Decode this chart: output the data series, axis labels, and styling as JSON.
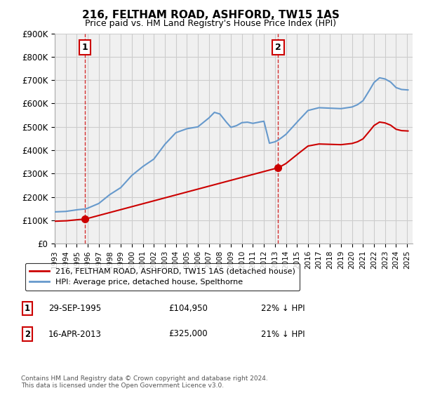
{
  "title": "216, FELTHAM ROAD, ASHFORD, TW15 1AS",
  "subtitle": "Price paid vs. HM Land Registry's House Price Index (HPI)",
  "ylim": [
    0,
    900000
  ],
  "yticks": [
    0,
    100000,
    200000,
    300000,
    400000,
    500000,
    600000,
    700000,
    800000,
    900000
  ],
  "ytick_labels": [
    "£0",
    "£100K",
    "£200K",
    "£300K",
    "£400K",
    "£500K",
    "£600K",
    "£700K",
    "£800K",
    "£900K"
  ],
  "xlim_start": 1993.0,
  "xlim_end": 2025.5,
  "hpi_color": "#6699cc",
  "price_color": "#cc0000",
  "grid_color": "#cccccc",
  "bg_color": "#f0f0f0",
  "sale1_x": 1995.747,
  "sale1_y": 104950,
  "sale1_label": "1",
  "sale1_date": "29-SEP-1995",
  "sale1_price": "£104,950",
  "sale1_hpi": "22% ↓ HPI",
  "sale2_x": 2013.292,
  "sale2_y": 325000,
  "sale2_label": "2",
  "sale2_date": "16-APR-2013",
  "sale2_price": "£325,000",
  "sale2_hpi": "21% ↓ HPI",
  "legend_label_price": "216, FELTHAM ROAD, ASHFORD, TW15 1AS (detached house)",
  "legend_label_hpi": "HPI: Average price, detached house, Spelthorne",
  "footer": "Contains HM Land Registry data © Crown copyright and database right 2024.\nThis data is licensed under the Open Government Licence v3.0.",
  "xticks": [
    1993,
    1994,
    1995,
    1996,
    1997,
    1998,
    1999,
    2000,
    2001,
    2002,
    2003,
    2004,
    2005,
    2006,
    2007,
    2008,
    2009,
    2010,
    2011,
    2012,
    2013,
    2014,
    2015,
    2016,
    2017,
    2018,
    2019,
    2020,
    2021,
    2022,
    2023,
    2024,
    2025
  ]
}
